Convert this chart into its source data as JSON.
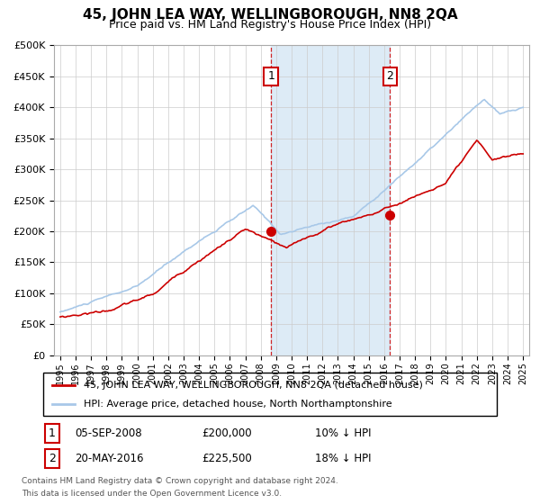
{
  "title": "45, JOHN LEA WAY, WELLINGBOROUGH, NN8 2QA",
  "subtitle": "Price paid vs. HM Land Registry's House Price Index (HPI)",
  "legend_line1": "45, JOHN LEA WAY, WELLINGBOROUGH, NN8 2QA (detached house)",
  "legend_line2": "HPI: Average price, detached house, North Northamptonshire",
  "annotation1_date": "05-SEP-2008",
  "annotation1_price": "£200,000",
  "annotation1_hpi": "10% ↓ HPI",
  "annotation2_date": "20-MAY-2016",
  "annotation2_price": "£225,500",
  "annotation2_hpi": "18% ↓ HPI",
  "footnote1": "Contains HM Land Registry data © Crown copyright and database right 2024.",
  "footnote2": "This data is licensed under the Open Government Licence v3.0.",
  "hpi_color": "#a8c8e8",
  "price_color": "#cc0000",
  "background_color": "#ffffff",
  "shade_color": "#d8e8f5",
  "ylim": [
    0,
    500000
  ],
  "yticks": [
    0,
    50000,
    100000,
    150000,
    200000,
    250000,
    300000,
    350000,
    400000,
    450000,
    500000
  ],
  "t1_year": 2008.667,
  "t2_year": 2016.375,
  "t1_price": 200000,
  "t2_price": 225500
}
